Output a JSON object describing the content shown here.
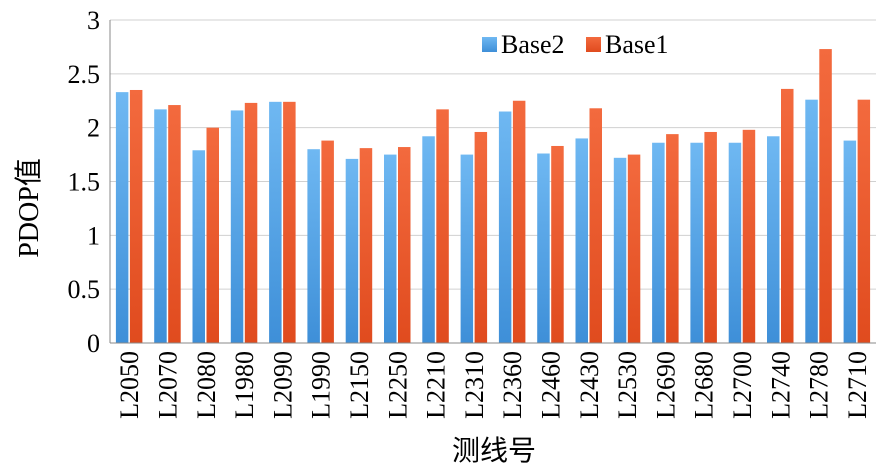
{
  "chart_data": {
    "type": "bar",
    "xlabel": "测线号",
    "ylabel": "PDOP值",
    "ylim": [
      0,
      3
    ],
    "yticks": [
      "0",
      "0.5",
      "1",
      "1.5",
      "2",
      "2.5",
      "3"
    ],
    "grid": true,
    "legend_position": "top-right",
    "categories": [
      "L2050",
      "L2070",
      "L2080",
      "L1980",
      "L2090",
      "L1990",
      "L2150",
      "L2250",
      "L2210",
      "L2310",
      "L2360",
      "L2460",
      "L2430",
      "L2530",
      "L2690",
      "L2680",
      "L2700",
      "L2740",
      "L2780",
      "L2710"
    ],
    "series": [
      {
        "name": "Base2",
        "color": "#5BA7E8",
        "values": [
          2.33,
          2.17,
          1.79,
          2.16,
          2.24,
          1.8,
          1.71,
          1.75,
          1.92,
          1.75,
          2.15,
          1.76,
          1.9,
          1.72,
          1.86,
          1.86,
          1.86,
          1.92,
          2.26,
          1.88
        ]
      },
      {
        "name": "Base1",
        "color": "#EE5A2E",
        "values": [
          2.35,
          2.21,
          2.0,
          2.23,
          2.24,
          1.88,
          1.81,
          1.82,
          2.17,
          1.96,
          2.25,
          1.83,
          2.18,
          1.75,
          1.94,
          1.96,
          1.98,
          2.36,
          2.73,
          2.26
        ]
      }
    ]
  }
}
